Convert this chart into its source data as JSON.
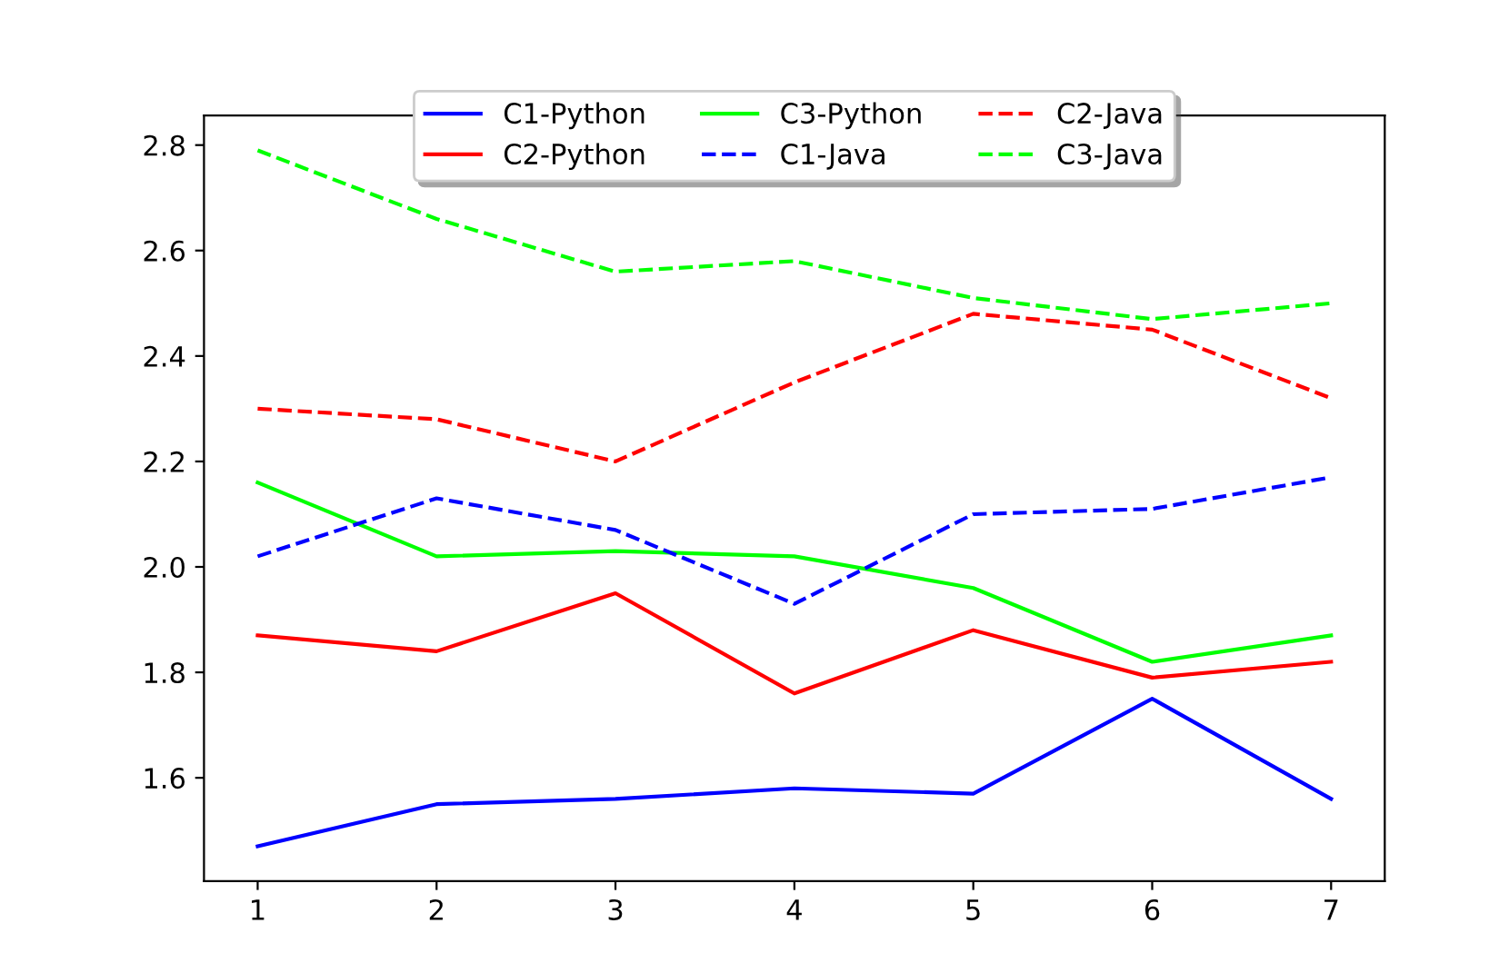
{
  "chart_data": {
    "type": "line",
    "x": [
      1,
      2,
      3,
      4,
      5,
      6,
      7
    ],
    "series": [
      {
        "name": "C1-Python",
        "color": "#0000ff",
        "line_style": "solid",
        "values": [
          1.47,
          1.55,
          1.56,
          1.58,
          1.57,
          1.75,
          1.56
        ]
      },
      {
        "name": "C2-Python",
        "color": "#ff0000",
        "line_style": "solid",
        "values": [
          1.87,
          1.84,
          1.95,
          1.76,
          1.88,
          1.79,
          1.82
        ]
      },
      {
        "name": "C3-Python",
        "color": "#00ff00",
        "line_style": "solid",
        "values": [
          2.16,
          2.02,
          2.03,
          2.02,
          1.96,
          1.82,
          1.87
        ]
      },
      {
        "name": "C1-Java",
        "color": "#0000ff",
        "line_style": "dashed",
        "values": [
          2.02,
          2.13,
          2.07,
          1.93,
          2.1,
          2.11,
          2.17
        ]
      },
      {
        "name": "C2-Java",
        "color": "#ff0000",
        "line_style": "dashed",
        "values": [
          2.3,
          2.28,
          2.2,
          2.35,
          2.48,
          2.45,
          2.32
        ]
      },
      {
        "name": "C3-Java",
        "color": "#00ff00",
        "line_style": "dashed",
        "values": [
          2.79,
          2.66,
          2.56,
          2.58,
          2.51,
          2.47,
          2.5
        ]
      }
    ],
    "xlim": [
      0.7,
      7.3
    ],
    "xticks": [
      1,
      2,
      3,
      4,
      5,
      6,
      7
    ],
    "ylim": [
      1.404,
      2.856
    ],
    "yticks": [
      {
        "value": 1.6,
        "label": "1.6"
      },
      {
        "value": 1.8,
        "label": "1.8"
      },
      {
        "value": 2.0,
        "label": "2.0"
      },
      {
        "value": 2.2,
        "label": "2.2"
      },
      {
        "value": 2.4,
        "label": "2.4"
      },
      {
        "value": 2.6,
        "label": "2.6"
      },
      {
        "value": 2.8,
        "label": "2.8"
      }
    ],
    "legend": "top",
    "grid": false
  }
}
